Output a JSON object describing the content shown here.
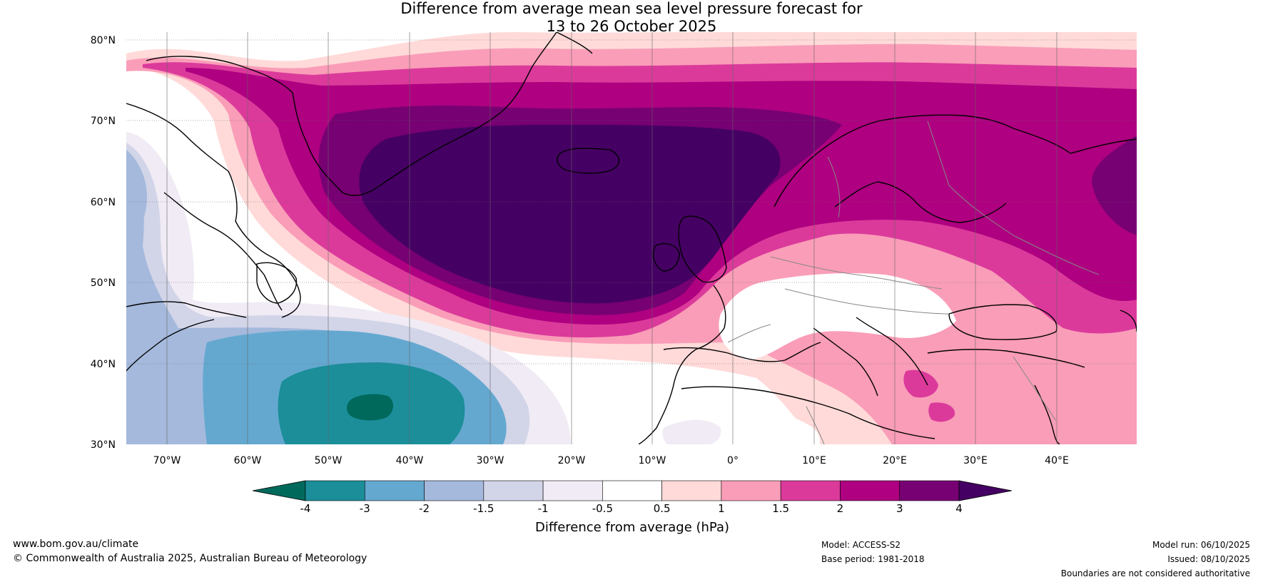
{
  "title": {
    "line1": "Difference from average mean sea level pressure forecast for",
    "line2": "13 to 26 October 2025"
  },
  "axes": {
    "lat_labels": [
      "80°N",
      "70°N",
      "60°N",
      "50°N",
      "40°N",
      "30°N"
    ],
    "lon_labels": [
      "70°W",
      "60°W",
      "50°W",
      "40°W",
      "30°W",
      "20°W",
      "10°W",
      "0°",
      "10°E",
      "20°E",
      "30°E",
      "40°E"
    ]
  },
  "colorbar": {
    "title": "Difference from average (hPa)",
    "tick_labels": [
      "-4",
      "-3",
      "-2",
      "-1.5",
      "-1",
      "-0.5",
      "0.5",
      "1",
      "1.5",
      "2",
      "3",
      "4"
    ],
    "colors": [
      "#00695c",
      "#1b8e9a",
      "#64a8d0",
      "#a4b9dc",
      "#d2d4e8",
      "#f0ebf4",
      "#ffffff",
      "#ffdad9",
      "#fa9db8",
      "#db3a9b",
      "#ae0080",
      "#770073",
      "#450063"
    ]
  },
  "map_palette": {
    "land_border": "#888888",
    "coast": "#000000",
    "grid": "#666666"
  },
  "footer": {
    "website": "www.bom.gov.au/climate",
    "copyright": "© Commonwealth of Australia 2025, Australian Bureau of Meteorology",
    "model": "Model: ACCESS-S2",
    "base_period": "Base period: 1981-2018",
    "model_run": "Model run: 06/10/2025",
    "issued": "Issued: 08/10/2025",
    "disclaimer": "Boundaries are not considered authoritative"
  }
}
